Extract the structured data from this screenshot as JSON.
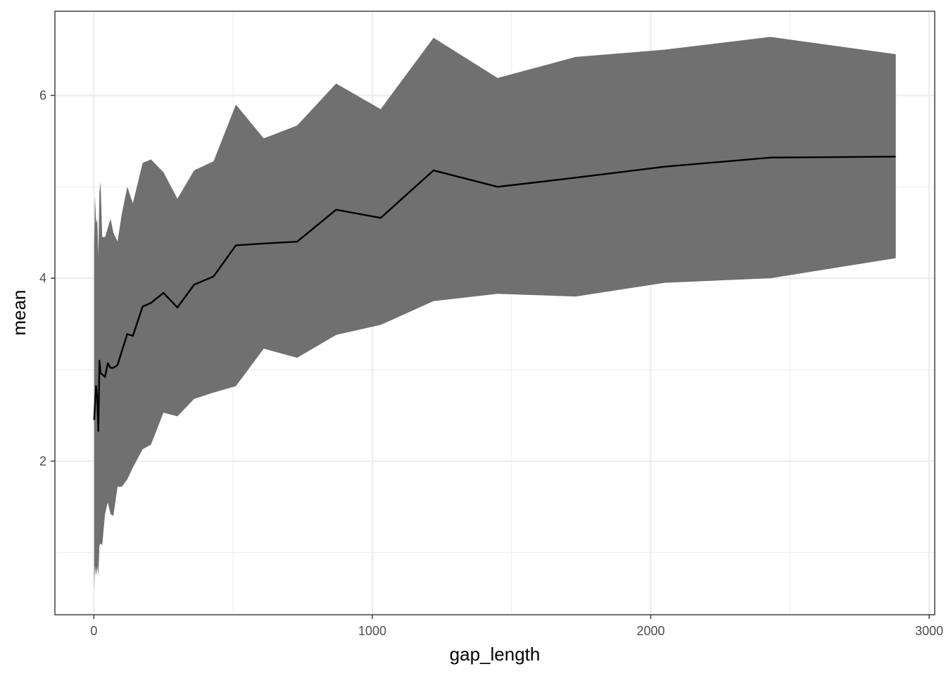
{
  "chart_data": {
    "type": "area",
    "xlabel": "gap_length",
    "ylabel": "mean",
    "xlim": [
      -140,
      3020
    ],
    "ylim": [
      0.32,
      6.92
    ],
    "x_ticks": [
      0,
      1000,
      2000,
      3000
    ],
    "y_ticks": [
      2,
      4,
      6
    ],
    "x_minor": [
      500,
      1500,
      2500
    ],
    "y_minor": [
      1,
      3,
      5
    ],
    "grid": true,
    "colors": {
      "ribbon": "#707070",
      "line": "#000000",
      "grid": "#ebebeb",
      "border": "#333333"
    },
    "series": [
      {
        "x": [
          1,
          4,
          8,
          12,
          16,
          20,
          24,
          30,
          40,
          50,
          60,
          70,
          85,
          100,
          120,
          140,
          175,
          205,
          250,
          300,
          360,
          430,
          510,
          610,
          730,
          870,
          1030,
          1220,
          1450,
          1730,
          2050,
          2430,
          2880
        ],
        "mean": [
          2.45,
          2.62,
          2.82,
          2.7,
          2.33,
          3.1,
          2.96,
          2.95,
          2.92,
          3.07,
          3.02,
          3.02,
          3.05,
          3.2,
          3.39,
          3.37,
          3.69,
          3.73,
          3.84,
          3.68,
          3.93,
          4.02,
          4.36,
          4.38,
          4.4,
          4.75,
          4.66,
          5.18,
          5.0,
          5.1,
          5.22,
          5.32,
          5.33
        ],
        "lower": [
          0.6,
          0.85,
          0.75,
          0.85,
          0.75,
          1.08,
          1.1,
          1.08,
          1.42,
          1.55,
          1.42,
          1.4,
          1.72,
          1.72,
          1.8,
          1.93,
          2.13,
          2.18,
          2.53,
          2.49,
          2.68,
          2.75,
          2.82,
          3.23,
          3.13,
          3.38,
          3.49,
          3.75,
          3.83,
          3.8,
          3.95,
          4.0,
          4.22
        ],
        "upper": [
          4.35,
          4.9,
          4.6,
          4.65,
          4.25,
          4.95,
          5.05,
          4.45,
          4.45,
          4.55,
          4.65,
          4.5,
          4.4,
          4.7,
          5.0,
          4.82,
          5.26,
          5.3,
          5.16,
          4.87,
          5.18,
          5.28,
          5.9,
          5.53,
          5.67,
          6.13,
          5.85,
          6.63,
          6.19,
          6.42,
          6.5,
          6.64,
          6.45
        ]
      }
    ]
  }
}
